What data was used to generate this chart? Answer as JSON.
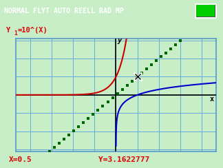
{
  "title_bar_text": "NORMAL FLYT AUTO REELL RAD MP",
  "title_bar_bg": "#606060",
  "title_bar_fg": "#ffffff",
  "formula_text": "Y1=10^(X)",
  "formula_color": "#dd0000",
  "bg_outer": "#c8eec8",
  "bg_plot": "#c8eec8",
  "grid_color": "#66aadd",
  "axis_color": "#000000",
  "plot_border_color": "#5599cc",
  "curve1_color": "#cc0000",
  "curve2_color": "#0000cc",
  "diag_color": "#006600",
  "xlabel": "x",
  "ylabel": "y",
  "bottom_text_x": "X=0.5",
  "bottom_text_y": "Y=3.1622777",
  "bottom_text_color": "#dd0000",
  "xmin": -4.7,
  "xmax": 4.7,
  "ymin": -3.1,
  "ymax": 3.1,
  "battery_color": "#00cc00"
}
